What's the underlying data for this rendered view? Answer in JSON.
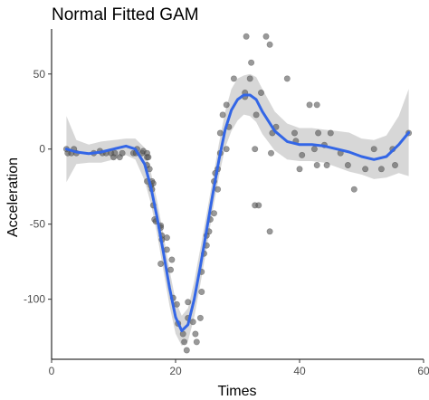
{
  "chart_data": {
    "type": "scatter",
    "title": "Normal Fitted GAM",
    "xlabel": "Times",
    "ylabel": "Acceleration",
    "xlim": [
      0,
      60
    ],
    "ylim": [
      -140,
      80
    ],
    "x_ticks": [
      0,
      20,
      40,
      60
    ],
    "y_ticks": [
      50,
      0,
      -50,
      -100
    ],
    "grid": false,
    "colors": {
      "points": "#555555",
      "smooth_line": "#3366e6",
      "confidence_band": "#d3d3d3",
      "axis": "#000000"
    },
    "points": [
      [
        2.4,
        0.0
      ],
      [
        2.6,
        -2.7
      ],
      [
        3.2,
        -2.7
      ],
      [
        3.6,
        0.0
      ],
      [
        4.0,
        -2.7
      ],
      [
        6.8,
        -2.7
      ],
      [
        7.8,
        -1.3
      ],
      [
        8.2,
        -2.7
      ],
      [
        8.8,
        -2.7
      ],
      [
        9.6,
        -2.7
      ],
      [
        10.0,
        -5.4
      ],
      [
        10.2,
        -2.7
      ],
      [
        11.0,
        -5.4
      ],
      [
        11.4,
        -2.7
      ],
      [
        13.2,
        -2.7
      ],
      [
        13.6,
        -2.7
      ],
      [
        13.8,
        0.0
      ],
      [
        14.6,
        -2.7
      ],
      [
        14.8,
        -1.3
      ],
      [
        15.4,
        -21.5
      ],
      [
        15.4,
        -2.7
      ],
      [
        15.4,
        -5.4
      ],
      [
        15.4,
        -10.7
      ],
      [
        15.6,
        -5.4
      ],
      [
        15.8,
        -13.3
      ],
      [
        16.0,
        -24.2
      ],
      [
        16.2,
        -21.5
      ],
      [
        16.2,
        -26.8
      ],
      [
        16.4,
        -22.8
      ],
      [
        16.4,
        -37.5
      ],
      [
        16.6,
        -46.9
      ],
      [
        16.8,
        -48.2
      ],
      [
        17.6,
        -50.9
      ],
      [
        17.6,
        -52.3
      ],
      [
        17.6,
        -76.4
      ],
      [
        17.8,
        -57.6
      ],
      [
        17.8,
        -60.3
      ],
      [
        18.6,
        -67.0
      ],
      [
        18.6,
        -59.0
      ],
      [
        19.2,
        -80.4
      ],
      [
        19.4,
        -73.7
      ],
      [
        19.6,
        -99.1
      ],
      [
        20.2,
        -103.4
      ],
      [
        20.4,
        -116.2
      ],
      [
        21.2,
        -123.1
      ],
      [
        21.4,
        -128.5
      ],
      [
        21.8,
        -134.0
      ],
      [
        22.0,
        -101.9
      ],
      [
        22.0,
        -112.5
      ],
      [
        22.8,
        -115.1
      ],
      [
        23.2,
        -123.1
      ],
      [
        23.4,
        -128.5
      ],
      [
        24.0,
        -112.5
      ],
      [
        24.2,
        -95.1
      ],
      [
        24.2,
        -81.8
      ],
      [
        24.6,
        -69.6
      ],
      [
        25.0,
        -64.2
      ],
      [
        25.0,
        -57.6
      ],
      [
        25.4,
        -54.9
      ],
      [
        25.6,
        -46.9
      ],
      [
        26.2,
        -42.8
      ],
      [
        26.2,
        -21.5
      ],
      [
        26.4,
        -16.0
      ],
      [
        26.8,
        -13.3
      ],
      [
        26.8,
        -26.8
      ],
      [
        27.2,
        -2.7
      ],
      [
        27.2,
        10.7
      ],
      [
        27.6,
        22.8
      ],
      [
        28.2,
        29.4
      ],
      [
        28.2,
        0.0
      ],
      [
        28.6,
        14.7
      ],
      [
        29.4,
        46.9
      ],
      [
        31.2,
        37.5
      ],
      [
        31.2,
        34.8
      ],
      [
        31.4,
        75.0
      ],
      [
        32.0,
        46.9
      ],
      [
        32.2,
        57.6
      ],
      [
        32.8,
        0.0
      ],
      [
        32.8,
        -37.5
      ],
      [
        33.0,
        22.8
      ],
      [
        33.4,
        -37.5
      ],
      [
        33.8,
        37.5
      ],
      [
        34.6,
        75.0
      ],
      [
        35.2,
        69.6
      ],
      [
        35.2,
        -54.9
      ],
      [
        35.4,
        -2.7
      ],
      [
        35.6,
        10.7
      ],
      [
        36.2,
        14.7
      ],
      [
        38.0,
        46.9
      ],
      [
        39.2,
        10.7
      ],
      [
        39.4,
        5.4
      ],
      [
        40.0,
        -13.3
      ],
      [
        40.4,
        -4.0
      ],
      [
        41.6,
        29.4
      ],
      [
        42.4,
        0.0
      ],
      [
        42.8,
        29.4
      ],
      [
        42.8,
        -10.7
      ],
      [
        43.0,
        10.7
      ],
      [
        44.0,
        2.7
      ],
      [
        44.4,
        -10.7
      ],
      [
        45.0,
        10.7
      ],
      [
        46.6,
        -2.7
      ],
      [
        47.8,
        -10.7
      ],
      [
        48.8,
        -26.8
      ],
      [
        50.6,
        -13.3
      ],
      [
        52.0,
        0.0
      ],
      [
        53.2,
        -13.3
      ],
      [
        55.0,
        0.0
      ],
      [
        55.4,
        -10.7
      ],
      [
        57.6,
        10.7
      ]
    ],
    "smooth_line": {
      "x": [
        2.4,
        4,
        6,
        8,
        10,
        12,
        13.5,
        15,
        16,
        17,
        18,
        19,
        20,
        21,
        22,
        23,
        24,
        25,
        26,
        27,
        28,
        29,
        30,
        31,
        32,
        33,
        34,
        36,
        38,
        40,
        42,
        44,
        46,
        48,
        50,
        52,
        54,
        56,
        57.6
      ],
      "y": [
        0,
        -2,
        -3,
        -2,
        0,
        2,
        0,
        -10,
        -25,
        -45,
        -68,
        -92,
        -112,
        -121,
        -117,
        -100,
        -78,
        -54,
        -30,
        -7,
        13,
        26,
        33,
        36,
        36,
        33,
        25,
        12,
        5,
        3,
        3,
        2,
        0,
        -2,
        -5,
        -7,
        -5,
        3,
        11
      ]
    },
    "confidence_band": {
      "upper": [
        22,
        6,
        3,
        5,
        6,
        7,
        7,
        1,
        -15,
        -34,
        -56,
        -80,
        -101,
        -111,
        -106,
        -88,
        -66,
        -43,
        -20,
        4,
        25,
        40,
        47,
        49,
        50,
        48,
        40,
        25,
        17,
        14,
        14,
        13,
        12,
        11,
        7,
        6,
        9,
        22,
        40
      ],
      "lower": [
        -22,
        -10,
        -9,
        -9,
        -7,
        -4,
        -7,
        -21,
        -36,
        -56,
        -80,
        -104,
        -123,
        -131,
        -128,
        -112,
        -90,
        -66,
        -41,
        -18,
        1,
        12,
        19,
        23,
        22,
        18,
        10,
        -1,
        -7,
        -8,
        -8,
        -9,
        -12,
        -15,
        -17,
        -20,
        -19,
        -16,
        -18
      ]
    }
  }
}
